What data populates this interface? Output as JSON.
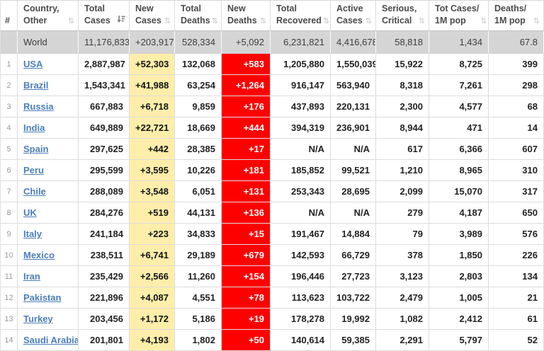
{
  "colors": {
    "new_cases_bg": "#ffeeaa",
    "new_deaths_bg": "#ff0000",
    "new_deaths_text": "#ffffff",
    "world_row_bg": "#d5d5d5",
    "link": "#4a7ebc"
  },
  "icons": {
    "sort_inactive_glyph": "⇅"
  },
  "table": {
    "columns": [
      {
        "key": "rank",
        "lines": [
          "#"
        ],
        "sort_icon": "none"
      },
      {
        "key": "country",
        "lines": [
          "Country,",
          "Other"
        ],
        "sort_icon": "both"
      },
      {
        "key": "total_cases",
        "lines": [
          "Total",
          "Cases"
        ],
        "sort_icon": "desc"
      },
      {
        "key": "new_cases",
        "lines": [
          "New",
          "Cases"
        ],
        "sort_icon": "both"
      },
      {
        "key": "total_deaths",
        "lines": [
          "Total",
          "Deaths"
        ],
        "sort_icon": "both"
      },
      {
        "key": "new_deaths",
        "lines": [
          "New",
          "Deaths"
        ],
        "sort_icon": "both"
      },
      {
        "key": "total_recovered",
        "lines": [
          "Total",
          "Recovered"
        ],
        "sort_icon": "both"
      },
      {
        "key": "active_cases",
        "lines": [
          "Active",
          "Cases"
        ],
        "sort_icon": "both"
      },
      {
        "key": "serious_critical",
        "lines": [
          "Serious,",
          "Critical"
        ],
        "sort_icon": "both"
      },
      {
        "key": "tot_cases_1m",
        "lines": [
          "Tot Cases/",
          "1M pop"
        ],
        "sort_icon": "both"
      },
      {
        "key": "deaths_1m",
        "lines": [
          "Deaths/",
          "1M pop"
        ],
        "sort_icon": "both"
      }
    ],
    "world_row": {
      "rank": "",
      "country": "World",
      "total_cases": "11,176,833",
      "new_cases": "+203,917",
      "total_deaths": "528,334",
      "new_deaths": "+5,092",
      "total_recovered": "6,231,821",
      "active_cases": "4,416,678",
      "serious_critical": "58,818",
      "tot_cases_1m": "1,434",
      "deaths_1m": "67.8"
    },
    "rows": [
      {
        "rank": "1",
        "country": "USA",
        "total_cases": "2,887,987",
        "new_cases": "+52,303",
        "total_deaths": "132,068",
        "new_deaths": "+583",
        "total_recovered": "1,205,880",
        "active_cases": "1,550,039",
        "serious_critical": "15,922",
        "tot_cases_1m": "8,725",
        "deaths_1m": "399"
      },
      {
        "rank": "2",
        "country": "Brazil",
        "total_cases": "1,543,341",
        "new_cases": "+41,988",
        "total_deaths": "63,254",
        "new_deaths": "+1,264",
        "total_recovered": "916,147",
        "active_cases": "563,940",
        "serious_critical": "8,318",
        "tot_cases_1m": "7,261",
        "deaths_1m": "298"
      },
      {
        "rank": "3",
        "country": "Russia",
        "total_cases": "667,883",
        "new_cases": "+6,718",
        "total_deaths": "9,859",
        "new_deaths": "+176",
        "total_recovered": "437,893",
        "active_cases": "220,131",
        "serious_critical": "2,300",
        "tot_cases_1m": "4,577",
        "deaths_1m": "68"
      },
      {
        "rank": "4",
        "country": "India",
        "total_cases": "649,889",
        "new_cases": "+22,721",
        "total_deaths": "18,669",
        "new_deaths": "+444",
        "total_recovered": "394,319",
        "active_cases": "236,901",
        "serious_critical": "8,944",
        "tot_cases_1m": "471",
        "deaths_1m": "14"
      },
      {
        "rank": "5",
        "country": "Spain",
        "total_cases": "297,625",
        "new_cases": "+442",
        "total_deaths": "28,385",
        "new_deaths": "+17",
        "total_recovered": "N/A",
        "active_cases": "N/A",
        "serious_critical": "617",
        "tot_cases_1m": "6,366",
        "deaths_1m": "607"
      },
      {
        "rank": "6",
        "country": "Peru",
        "total_cases": "295,599",
        "new_cases": "+3,595",
        "total_deaths": "10,226",
        "new_deaths": "+181",
        "total_recovered": "185,852",
        "active_cases": "99,521",
        "serious_critical": "1,210",
        "tot_cases_1m": "8,965",
        "deaths_1m": "310"
      },
      {
        "rank": "7",
        "country": "Chile",
        "total_cases": "288,089",
        "new_cases": "+3,548",
        "total_deaths": "6,051",
        "new_deaths": "+131",
        "total_recovered": "253,343",
        "active_cases": "28,695",
        "serious_critical": "2,099",
        "tot_cases_1m": "15,070",
        "deaths_1m": "317"
      },
      {
        "rank": "8",
        "country": "UK",
        "total_cases": "284,276",
        "new_cases": "+519",
        "total_deaths": "44,131",
        "new_deaths": "+136",
        "total_recovered": "N/A",
        "active_cases": "N/A",
        "serious_critical": "279",
        "tot_cases_1m": "4,187",
        "deaths_1m": "650"
      },
      {
        "rank": "9",
        "country": "Italy",
        "total_cases": "241,184",
        "new_cases": "+223",
        "total_deaths": "34,833",
        "new_deaths": "+15",
        "total_recovered": "191,467",
        "active_cases": "14,884",
        "serious_critical": "79",
        "tot_cases_1m": "3,989",
        "deaths_1m": "576"
      },
      {
        "rank": "10",
        "country": "Mexico",
        "total_cases": "238,511",
        "new_cases": "+6,741",
        "total_deaths": "29,189",
        "new_deaths": "+679",
        "total_recovered": "142,593",
        "active_cases": "66,729",
        "serious_critical": "378",
        "tot_cases_1m": "1,850",
        "deaths_1m": "226"
      },
      {
        "rank": "11",
        "country": "Iran",
        "total_cases": "235,429",
        "new_cases": "+2,566",
        "total_deaths": "11,260",
        "new_deaths": "+154",
        "total_recovered": "196,446",
        "active_cases": "27,723",
        "serious_critical": "3,123",
        "tot_cases_1m": "2,803",
        "deaths_1m": "134"
      },
      {
        "rank": "12",
        "country": "Pakistan",
        "total_cases": "221,896",
        "new_cases": "+4,087",
        "total_deaths": "4,551",
        "new_deaths": "+78",
        "total_recovered": "113,623",
        "active_cases": "103,722",
        "serious_critical": "2,479",
        "tot_cases_1m": "1,005",
        "deaths_1m": "21"
      },
      {
        "rank": "13",
        "country": "Turkey",
        "total_cases": "203,456",
        "new_cases": "+1,172",
        "total_deaths": "5,186",
        "new_deaths": "+19",
        "total_recovered": "178,278",
        "active_cases": "19,992",
        "serious_critical": "1,082",
        "tot_cases_1m": "2,412",
        "deaths_1m": "61"
      },
      {
        "rank": "14",
        "country": "Saudi Arabia",
        "total_cases": "201,801",
        "new_cases": "+4,193",
        "total_deaths": "1,802",
        "new_deaths": "+50",
        "total_recovered": "140,614",
        "active_cases": "59,385",
        "serious_critical": "2,291",
        "tot_cases_1m": "5,797",
        "deaths_1m": "52"
      }
    ]
  }
}
